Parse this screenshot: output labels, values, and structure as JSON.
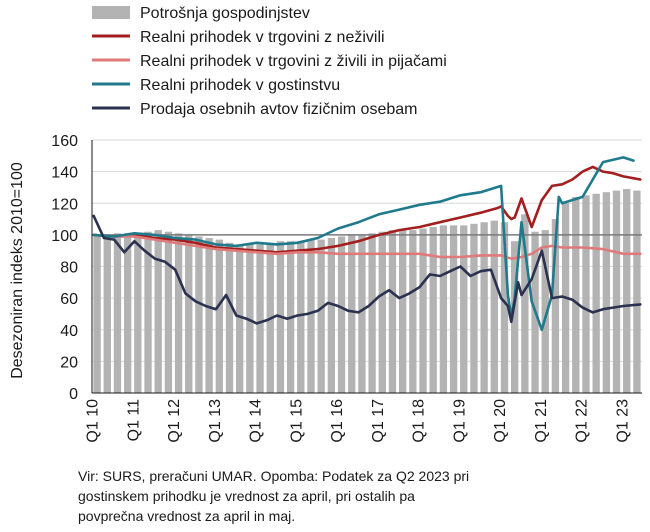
{
  "chart_data": {
    "type": "bar+line",
    "ylabel": "Desezoniran indeks 2010=100",
    "ylim": [
      0,
      160
    ],
    "yticks": [
      0,
      20,
      40,
      60,
      80,
      100,
      120,
      140,
      160
    ],
    "reference_line": 100,
    "grid": "horizontal",
    "legend_position": "top",
    "x_start": "2010-01",
    "x_end": "2023-06",
    "x_step": "month",
    "xtick_labels": [
      "Q1 10",
      "Q1 11",
      "Q1 12",
      "Q1 13",
      "Q1 14",
      "Q1 15",
      "Q1 16",
      "Q1 17",
      "Q1 18",
      "Q1 19",
      "Q1 20",
      "Q1 21",
      "Q1 22",
      "Q1 23"
    ],
    "bar_series": {
      "name": "Potrošnja gospodinjstev",
      "color": "#b3b3b3",
      "frequency": "quarterly",
      "values": [
        100,
        100,
        101,
        101,
        101,
        102,
        103,
        102,
        101,
        100,
        99,
        98,
        97,
        95,
        94,
        94,
        94,
        95,
        96,
        96,
        96,
        97,
        97,
        98,
        99,
        100,
        100,
        101,
        102,
        103,
        103,
        103,
        104,
        105,
        106,
        106,
        106,
        107,
        108,
        109,
        108,
        96,
        113,
        102,
        103,
        110,
        120,
        124,
        125,
        126,
        127,
        128,
        129,
        128
      ]
    },
    "series": [
      {
        "name": "Realni prihodek v trgovini z neživili",
        "color": "#a31f1f",
        "x": [
          "2010-01",
          "2010-07",
          "2011-01",
          "2011-07",
          "2012-01",
          "2012-07",
          "2013-01",
          "2013-07",
          "2014-01",
          "2014-07",
          "2015-01",
          "2015-07",
          "2016-01",
          "2016-07",
          "2017-01",
          "2017-07",
          "2018-01",
          "2018-07",
          "2019-01",
          "2019-07",
          "2019-12",
          "2020-01",
          "2020-03",
          "2020-04",
          "2020-05",
          "2020-07",
          "2020-10",
          "2021-01",
          "2021-04",
          "2021-07",
          "2021-10",
          "2022-01",
          "2022-04",
          "2022-07",
          "2022-10",
          "2023-01",
          "2023-06"
        ],
        "values": [
          100,
          99,
          100,
          98,
          97,
          95,
          92,
          91,
          90,
          89,
          90,
          91,
          93,
          96,
          100,
          103,
          105,
          108,
          111,
          114,
          117,
          118,
          112,
          110,
          111,
          123,
          105,
          122,
          131,
          132,
          135,
          140,
          143,
          140,
          139,
          137,
          135
        ]
      },
      {
        "name": "Realni prihodek v trgovini z živili in pijačami",
        "color": "#e07a7a",
        "x": [
          "2010-01",
          "2010-07",
          "2011-01",
          "2011-07",
          "2012-01",
          "2012-07",
          "2013-01",
          "2013-07",
          "2014-01",
          "2014-07",
          "2015-01",
          "2015-07",
          "2016-01",
          "2016-07",
          "2017-01",
          "2017-07",
          "2018-01",
          "2018-07",
          "2019-01",
          "2019-07",
          "2020-01",
          "2020-04",
          "2020-07",
          "2020-10",
          "2021-01",
          "2021-04",
          "2021-07",
          "2022-01",
          "2022-07",
          "2023-01",
          "2023-06"
        ],
        "values": [
          100,
          99,
          99,
          97,
          95,
          93,
          91,
          90,
          89,
          88,
          89,
          89,
          88,
          88,
          88,
          88,
          88,
          86,
          86,
          87,
          87,
          85,
          86,
          88,
          92,
          93,
          92,
          92,
          91,
          88,
          88
        ]
      },
      {
        "name": "Realni prihodek v gostinstvu",
        "color": "#1f7a8c",
        "x": [
          "2010-01",
          "2010-07",
          "2011-01",
          "2011-07",
          "2012-01",
          "2012-07",
          "2013-01",
          "2013-07",
          "2014-01",
          "2014-07",
          "2015-01",
          "2015-07",
          "2016-01",
          "2016-07",
          "2017-01",
          "2017-07",
          "2018-01",
          "2018-07",
          "2019-01",
          "2019-07",
          "2020-01",
          "2020-03",
          "2020-04",
          "2020-05",
          "2020-07",
          "2020-10",
          "2021-01",
          "2021-04",
          "2021-06",
          "2021-07",
          "2022-01",
          "2022-04",
          "2022-07",
          "2023-01",
          "2023-04"
        ],
        "values": [
          100,
          99,
          101,
          100,
          98,
          97,
          94,
          93,
          95,
          94,
          95,
          98,
          104,
          108,
          113,
          116,
          119,
          121,
          125,
          127,
          131,
          62,
          48,
          60,
          108,
          58,
          40,
          62,
          124,
          120,
          124,
          135,
          146,
          149,
          147
        ]
      },
      {
        "name": "Prodaja osebnih avtov fizičnim osebam",
        "color": "#2b3250",
        "x": [
          "2010-01",
          "2010-04",
          "2010-07",
          "2010-10",
          "2011-01",
          "2011-04",
          "2011-07",
          "2011-10",
          "2012-01",
          "2012-04",
          "2012-07",
          "2012-10",
          "2013-01",
          "2013-04",
          "2013-07",
          "2013-10",
          "2014-01",
          "2014-04",
          "2014-07",
          "2014-10",
          "2015-01",
          "2015-04",
          "2015-07",
          "2015-10",
          "2016-01",
          "2016-04",
          "2016-07",
          "2016-10",
          "2017-01",
          "2017-04",
          "2017-07",
          "2017-10",
          "2018-01",
          "2018-04",
          "2018-07",
          "2018-10",
          "2019-01",
          "2019-04",
          "2019-07",
          "2019-10",
          "2020-01",
          "2020-03",
          "2020-04",
          "2020-06",
          "2020-07",
          "2020-10",
          "2021-01",
          "2021-04",
          "2021-07",
          "2021-10",
          "2022-01",
          "2022-04",
          "2022-07",
          "2022-10",
          "2023-01",
          "2023-06"
        ],
        "values": [
          112,
          98,
          97,
          89,
          96,
          90,
          85,
          83,
          78,
          63,
          58,
          55,
          53,
          62,
          49,
          47,
          44,
          46,
          49,
          47,
          49,
          50,
          52,
          57,
          55,
          52,
          51,
          55,
          61,
          65,
          60,
          63,
          67,
          75,
          74,
          77,
          80,
          74,
          77,
          78,
          60,
          55,
          45,
          70,
          62,
          72,
          90,
          60,
          61,
          59,
          54,
          51,
          53,
          54,
          55,
          56
        ]
      }
    ]
  },
  "footnote": [
    "Vir: SURS, preračuni UMAR. Opomba: Podatek za Q2 2023 pri",
    "gostinskem prihodku je vrednost za april, pri ostalih pa",
    "povprečna vrednost za april in maj."
  ]
}
